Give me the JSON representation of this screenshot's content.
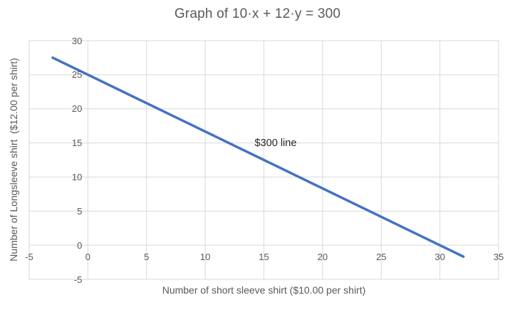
{
  "colors": {
    "line": "#4472C4",
    "grid": "#D9D9D9",
    "axis_text": "#595959",
    "title_text": "#595959",
    "annotation_text": "#262626",
    "background": "#FFFFFF"
  },
  "chart_data": {
    "type": "line",
    "title": "Graph of 10·x + 12·y = 300",
    "xlabel": "Number of short sleeve shirt ($10.00 per shirt)",
    "ylabel": "Number of Longsleeve shirt  ($12.00 per shirt)",
    "xlim": [
      -5,
      35
    ],
    "ylim": [
      -5,
      30
    ],
    "x_ticks": [
      -5,
      0,
      5,
      10,
      15,
      20,
      25,
      30,
      35
    ],
    "y_ticks": [
      -5,
      0,
      5,
      10,
      15,
      20,
      25,
      30
    ],
    "grid": true,
    "legend": "none",
    "series": [
      {
        "name": "$300 line",
        "color": "#4472C4",
        "x": [
          -3,
          32
        ],
        "y": [
          27.5,
          -1.67
        ]
      }
    ],
    "annotations": [
      {
        "text": "$300 line",
        "x": 16,
        "y": 15
      }
    ]
  }
}
